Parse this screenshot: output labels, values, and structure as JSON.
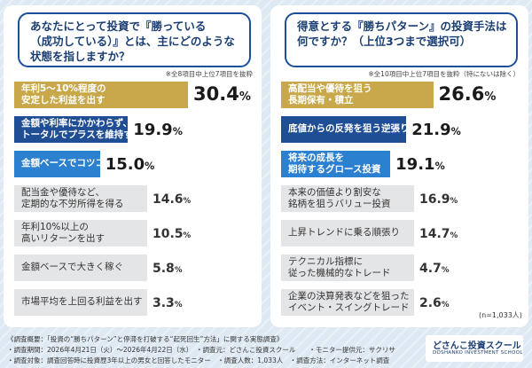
{
  "chart_data": [
    {
      "type": "bar",
      "question": "あなたにとって投資で『勝っている\n（成功している）』とは、主にどのような\n状態を指しますか？",
      "note": "※全8項目中上位7項目を抜粋",
      "categories": [
        "年利5〜10%程度の\n安定した利益を出す",
        "金額や利率にかかわらず、\nトータルでプラスを維持する",
        "金額ベースでコツコツ稼ぐ",
        "配当金や優待など、\n定期的な不労所得を得る",
        "年利10%以上の\n高いリターンを出す",
        "金額ベースで大きく稼ぐ",
        "市場平均を上回る利益を出す"
      ],
      "values": [
        30.4,
        19.9,
        15.0,
        14.6,
        10.5,
        5.8,
        3.3
      ],
      "value_labels": [
        "30.4",
        "19.9",
        "15.0",
        "14.6",
        "10.5",
        "5.8",
        "3.3"
      ],
      "unit": "%",
      "colors": [
        "#c8a84a",
        "#1f4e95",
        "#2b80d0",
        "#e4e5e7",
        "#e4e5e7",
        "#e4e5e7",
        "#e4e5e7"
      ]
    },
    {
      "type": "bar",
      "question": "得意とする『勝ちパターン』の投資手法は\n何ですか？（上位3つまで選択可）",
      "note": "※全10項目中上位7項目を抜粋（特にないは除く）",
      "categories": [
        "高配当や優待を狙う\n長期保有・積立",
        "底値からの反発を狙う逆張り",
        "将来の成長を\n期待するグロース投資",
        "本来の価値より割安な\n銘柄を狙うバリュー投資",
        "上昇トレンドに乗る順張り",
        "テクニカル指標に\n従った機械的なトレード",
        "企業の決算発表などを狙った\nイベント・スイングトレード"
      ],
      "values": [
        26.6,
        21.9,
        19.1,
        16.9,
        14.7,
        4.7,
        2.6
      ],
      "value_labels": [
        "26.6",
        "21.9",
        "19.1",
        "16.9",
        "14.7",
        "4.7",
        "2.6"
      ],
      "unit": "%",
      "colors": [
        "#c8a84a",
        "#1f4e95",
        "#2b80d0",
        "#e4e5e7",
        "#e4e5e7",
        "#e4e5e7",
        "#e4e5e7"
      ]
    }
  ],
  "sample_size": "(n=1,033人)",
  "footer": {
    "line1": "《調査概要：「投資の“勝ちパターン”と停滞を打破する“起死回生”方法」に関する実態調査》",
    "line2": "・調査期間：2026年4月21日（火）〜2026年4月22日（水）　・調査元：どさんこ投資スクール　　・モニター提供元：サクリサ",
    "line3": "・調査対象：調査回答時に投資歴3年以上の男女と回答したモニター　・調査人数：1,033人　・調査方法：インターネット調査"
  },
  "logo": {
    "name": "どさんこ投資スクール",
    "sub": "DOSHANKO INVESTMENT SCHOOL"
  }
}
